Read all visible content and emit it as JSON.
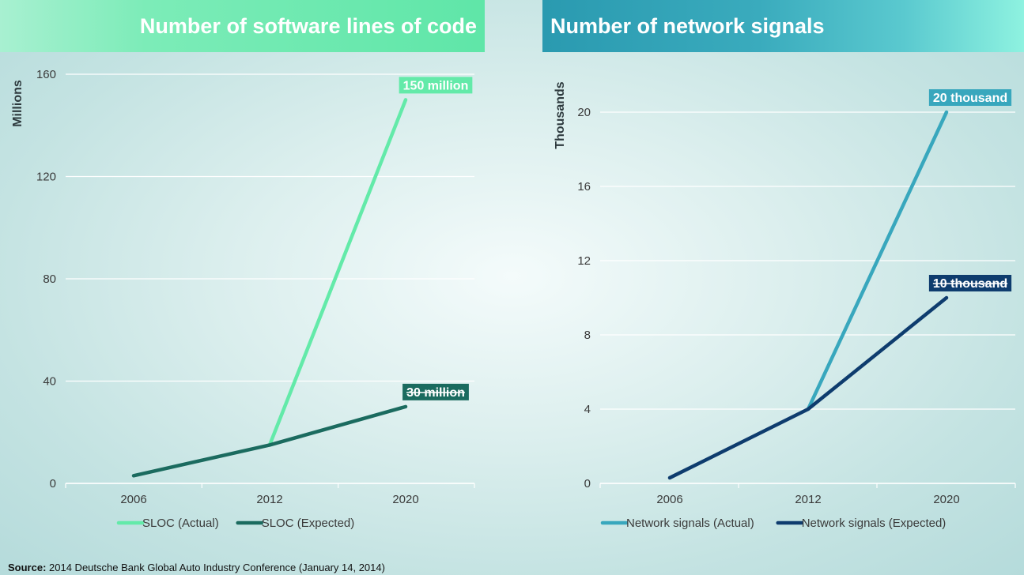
{
  "source": {
    "label": "Source:",
    "text": " 2014 Deutsche Bank Global Auto Industry Conference (January 14, 2014)"
  },
  "chart_data": [
    {
      "type": "line",
      "title": "Number of software lines of code",
      "ylabel": "Millions",
      "xlabel": "",
      "categories": [
        "2006",
        "2012",
        "2020"
      ],
      "ylim": [
        0,
        160
      ],
      "yticks": [
        0,
        40,
        80,
        120,
        160
      ],
      "grid": true,
      "legend": "bottom",
      "series": [
        {
          "name": "SLOC (Actual)",
          "x": [
            "2012",
            "2020"
          ],
          "values": [
            15,
            150
          ],
          "color": "#63eaa9",
          "callout": "150 million"
        },
        {
          "name": "SLOC (Expected)",
          "x": [
            "2006",
            "2012",
            "2020"
          ],
          "values": [
            3,
            15,
            30
          ],
          "color": "#1b6b5f",
          "callout": "30 million",
          "callout_strike": true
        }
      ]
    },
    {
      "type": "line",
      "title": "Number of network signals",
      "ylabel": "Thousands",
      "xlabel": "",
      "categories": [
        "2006",
        "2012",
        "2020"
      ],
      "ylim": [
        0,
        22
      ],
      "yticks": [
        0,
        4,
        8,
        12,
        16,
        20
      ],
      "grid": true,
      "legend": "bottom",
      "series": [
        {
          "name": "Network signals (Actual)",
          "x": [
            "2012",
            "2020"
          ],
          "values": [
            4,
            20
          ],
          "color": "#38a7bd",
          "callout": "20 thousand"
        },
        {
          "name": "Network signals (Expected)",
          "x": [
            "2006",
            "2012",
            "2020"
          ],
          "values": [
            0.3,
            4,
            10
          ],
          "color": "#0e3c6e",
          "callout": "10 thousand",
          "callout_strike": true
        }
      ]
    }
  ]
}
